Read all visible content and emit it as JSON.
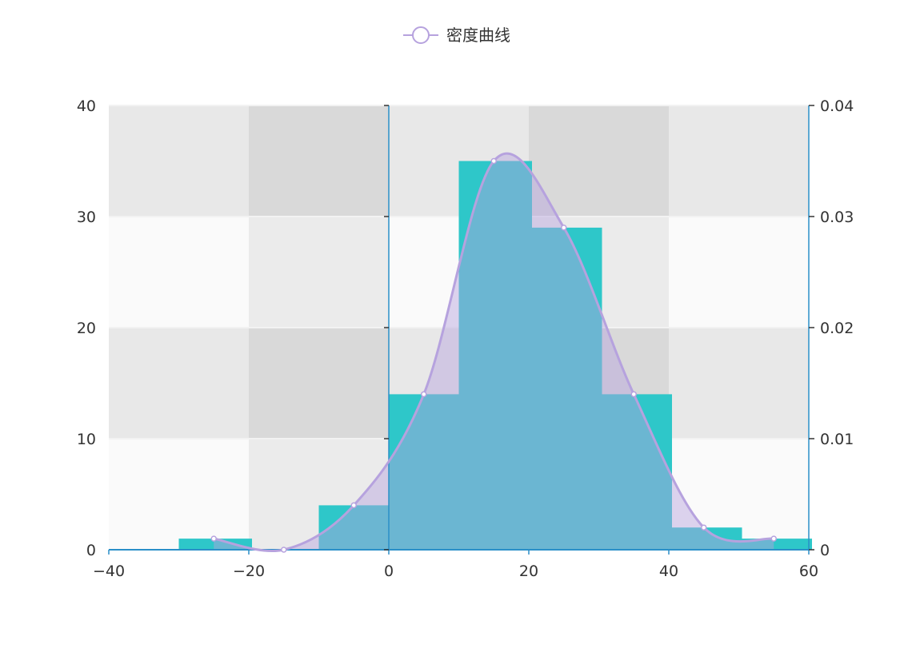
{
  "chart_data": {
    "type": "bar",
    "title": "",
    "legend": {
      "entries": [
        "密度曲线"
      ],
      "position": "top-center"
    },
    "x_axis": {
      "range": [
        -40,
        60
      ],
      "ticks": [
        -40,
        -20,
        0,
        20,
        40,
        60
      ],
      "tick_labels": [
        "−40",
        "−20",
        "0",
        "20",
        "40",
        "60"
      ]
    },
    "y_axis_left": {
      "range": [
        0,
        40
      ],
      "ticks": [
        0,
        10,
        20,
        30,
        40
      ],
      "tick_labels": [
        "0",
        "10",
        "20",
        "30",
        "40"
      ]
    },
    "y_axis_right": {
      "range": [
        0,
        0.04
      ],
      "ticks": [
        0,
        0.01,
        0.02,
        0.03,
        0.04
      ],
      "tick_labels": [
        "0",
        "0.01",
        "0.02",
        "0.03",
        "0.04"
      ]
    },
    "histogram": {
      "bins": [
        {
          "x0": -30,
          "x1": -20,
          "count": 1
        },
        {
          "x0": -20,
          "x1": -10,
          "count": 0
        },
        {
          "x0": -10,
          "x1": 0,
          "count": 4
        },
        {
          "x0": 0,
          "x1": 10,
          "count": 14
        },
        {
          "x0": 10,
          "x1": 20,
          "count": 35
        },
        {
          "x0": 20,
          "x1": 30,
          "count": 29
        },
        {
          "x0": 30,
          "x1": 40,
          "count": 14
        },
        {
          "x0": 40,
          "x1": 50,
          "count": 2
        },
        {
          "x0": 50,
          "x1": 60,
          "count": 1
        }
      ],
      "color": "#2ec7c9"
    },
    "density_series": {
      "name": "密度曲线",
      "x": [
        -25,
        -15,
        -5,
        5,
        15,
        25,
        35,
        45,
        55
      ],
      "y": [
        0.001,
        0,
        0.004,
        0.014,
        0.035,
        0.029,
        0.014,
        0.002,
        0.001
      ],
      "smooth": true,
      "area_fill": true,
      "color": "#b6a2de"
    },
    "background_bands": true
  }
}
